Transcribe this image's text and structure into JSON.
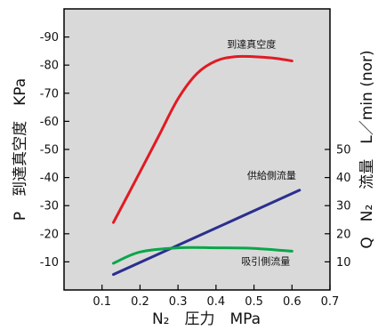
{
  "chart_data": {
    "type": "line",
    "xlabel": "N₂　圧力　MPa",
    "ylabel_left": "P　到達真空度　KPa",
    "ylabel_right": "Q　N₂　流量　L／min (nor)",
    "x_ticks": [
      0.1,
      0.2,
      0.3,
      0.4,
      0.5,
      0.6,
      0.7
    ],
    "y_left_ticks": [
      -10,
      -20,
      -30,
      -40,
      -50,
      -60,
      -70,
      -80,
      -90
    ],
    "y_right_ticks": [
      10,
      20,
      30,
      40,
      50
    ],
    "xlim": [
      0.0,
      0.7
    ],
    "ylim_left": [
      0,
      -100
    ],
    "grid": false,
    "background": "#d9d9d9",
    "series": [
      {
        "name": "到達真空度",
        "color": "#e01b24",
        "axis": "left",
        "x": [
          0.13,
          0.2,
          0.25,
          0.3,
          0.35,
          0.4,
          0.45,
          0.5,
          0.55,
          0.6
        ],
        "y": [
          -24,
          -42,
          -55,
          -68,
          -77,
          -81.5,
          -83,
          -83,
          -82.5,
          -81.5
        ]
      },
      {
        "name": "供給側流量",
        "color": "#2b2f8f",
        "axis": "right",
        "x": [
          0.13,
          0.62
        ],
        "y": [
          5.5,
          35.5
        ]
      },
      {
        "name": "吸引側流量",
        "color": "#0aa64a",
        "axis": "right",
        "x": [
          0.13,
          0.2,
          0.3,
          0.4,
          0.5,
          0.6
        ],
        "y": [
          9.5,
          13.5,
          15,
          15,
          14.8,
          13.8
        ]
      }
    ]
  }
}
